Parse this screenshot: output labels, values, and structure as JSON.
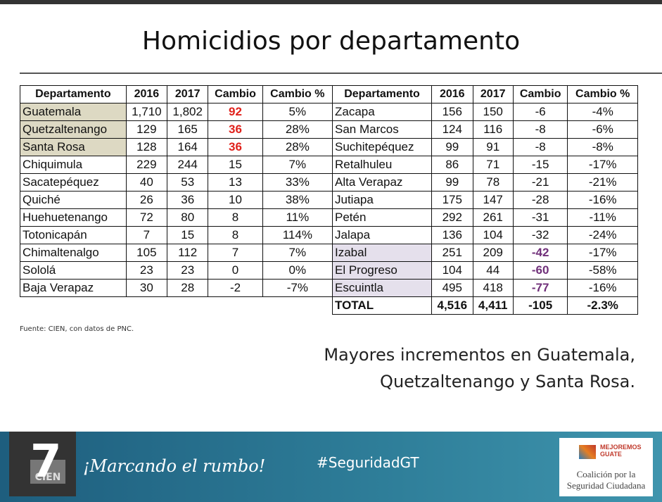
{
  "title": "Homicidios por departamento",
  "left_table": {
    "header": [
      "Departamento",
      "2016",
      "2017",
      "Cambio",
      "Cambio %"
    ],
    "rows": [
      [
        "Guatemala",
        "1,710",
        "1,802",
        "92",
        "5%"
      ],
      [
        "Quetzaltenango",
        "129",
        "165",
        "36",
        "28%"
      ],
      [
        "Santa Rosa",
        "128",
        "164",
        "36",
        "28%"
      ],
      [
        "Chiquimula",
        "229",
        "244",
        "15",
        "7%"
      ],
      [
        "Sacatepéquez",
        "40",
        "53",
        "13",
        "33%"
      ],
      [
        "Quiché",
        "26",
        "36",
        "10",
        "38%"
      ],
      [
        "Huehuetenango",
        "72",
        "80",
        "8",
        "11%"
      ],
      [
        "Totonicapán",
        "7",
        "15",
        "8",
        "114%"
      ],
      [
        "Chimaltenalgo",
        "105",
        "112",
        "7",
        "7%"
      ],
      [
        "Sololá",
        "23",
        "23",
        "0",
        "0%"
      ],
      [
        "Baja Verapaz",
        "30",
        "28",
        "-2",
        "-7%"
      ]
    ]
  },
  "right_table": {
    "header": [
      "Departamento",
      "2016",
      "2017",
      "Cambio",
      "Cambio %"
    ],
    "rows": [
      [
        "Zacapa",
        "156",
        "150",
        "-6",
        "-4%"
      ],
      [
        "San Marcos",
        "124",
        "116",
        "-8",
        "-6%"
      ],
      [
        "Suchitepéquez",
        "99",
        "91",
        "-8",
        "-8%"
      ],
      [
        "Retalhuleu",
        "86",
        "71",
        "-15",
        "-17%"
      ],
      [
        "Alta Verapaz",
        "99",
        "78",
        "-21",
        "-21%"
      ],
      [
        "Jutiapa",
        "175",
        "147",
        "-28",
        "-16%"
      ],
      [
        "Petén",
        "292",
        "261",
        "-31",
        "-11%"
      ],
      [
        "Jalapa",
        "136",
        "104",
        "-32",
        "-24%"
      ],
      [
        "Izabal",
        "251",
        "209",
        "-42",
        "-17%"
      ],
      [
        "El Progreso",
        "104",
        "44",
        "-60",
        "-58%"
      ],
      [
        "Escuintla",
        "495",
        "418",
        "-77",
        "-16%"
      ]
    ],
    "total": [
      "TOTAL",
      "4,516",
      "4,411",
      "-105",
      "-2.3%"
    ]
  },
  "source": "Fuente: CIEN, con datos de PNC.",
  "conclusion": [
    "Mayores incrementos en Guatemala,",
    "Quetzaltenango y Santa Rosa."
  ],
  "footer": {
    "page_number": "7",
    "logo": "CIEN",
    "slogan": "¡Marcando el rumbo!",
    "hashtag": "#SeguridadGT",
    "partner_logo": {
      "brand_top": "MEJOREMOS",
      "brand_bottom": "GUATE",
      "name_line1": "Coalición por la",
      "name_line2": "Seguridad Ciudadana"
    }
  }
}
